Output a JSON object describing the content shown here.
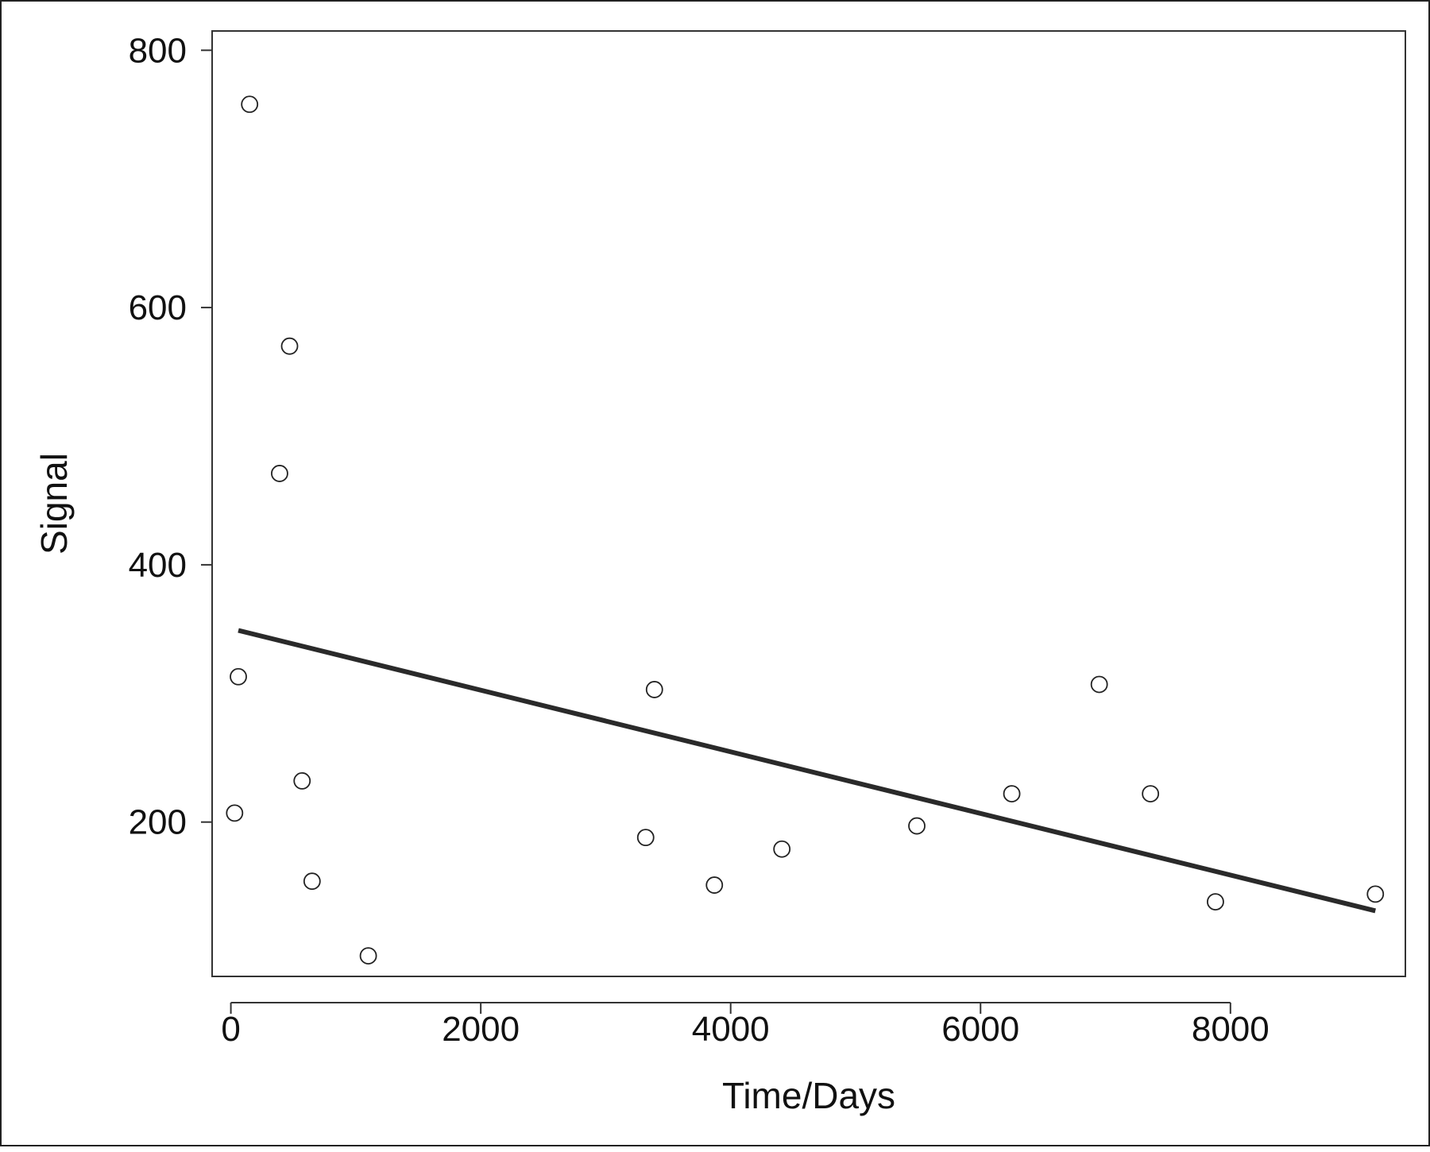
{
  "chart_data": {
    "type": "scatter",
    "xlabel": "Time/Days",
    "ylabel": "Signal",
    "xlim": [
      -150,
      9400
    ],
    "ylim": [
      80,
      815
    ],
    "xticks": [
      0,
      2000,
      4000,
      6000,
      8000
    ],
    "xtick_labels": [
      "0",
      "2000",
      "4000",
      "6000",
      "8000"
    ],
    "yticks": [
      200,
      400,
      600,
      800
    ],
    "ytick_labels": [
      "200",
      "400",
      "600",
      "800"
    ],
    "grid": false,
    "legend": "none",
    "series": [
      {
        "type": "scatter",
        "marker": "open-circle",
        "color": "#222222",
        "points": [
          {
            "x": 30,
            "y": 207
          },
          {
            "x": 60,
            "y": 313
          },
          {
            "x": 150,
            "y": 758
          },
          {
            "x": 390,
            "y": 471
          },
          {
            "x": 470,
            "y": 570
          },
          {
            "x": 570,
            "y": 232
          },
          {
            "x": 650,
            "y": 154
          },
          {
            "x": 1100,
            "y": 96
          },
          {
            "x": 3320,
            "y": 188
          },
          {
            "x": 3390,
            "y": 303
          },
          {
            "x": 3870,
            "y": 151
          },
          {
            "x": 4410,
            "y": 179
          },
          {
            "x": 5490,
            "y": 197
          },
          {
            "x": 6250,
            "y": 222
          },
          {
            "x": 6950,
            "y": 307
          },
          {
            "x": 7360,
            "y": 222
          },
          {
            "x": 7880,
            "y": 138
          },
          {
            "x": 9160,
            "y": 144
          }
        ]
      },
      {
        "type": "line",
        "color": "#2a2a2a",
        "x": [
          60,
          9160
        ],
        "y": [
          349,
          131
        ]
      }
    ]
  }
}
